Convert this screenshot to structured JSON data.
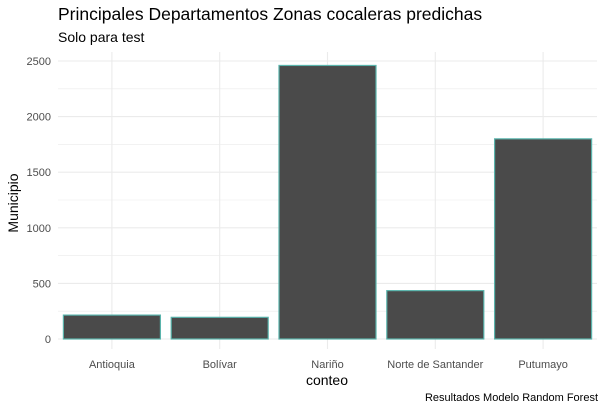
{
  "chart_data": {
    "type": "bar",
    "title": "Principales Departamentos Zonas cocaleras predichas",
    "subtitle": "Solo para test",
    "caption": "Resultados Modelo Random Forest",
    "xlabel": "conteo",
    "ylabel": "Municipio",
    "categories": [
      "Antioquia",
      "Bolívar",
      "Nariño",
      "Norte de Santander",
      "Putumayo"
    ],
    "values": [
      215,
      195,
      2460,
      435,
      1800
    ],
    "ylim": [
      0,
      2550
    ],
    "yticks": [
      0,
      500,
      1000,
      1500,
      2000,
      2500
    ],
    "grid": true,
    "colors": {
      "bar_fill": "#4a4a4a",
      "bar_outline": "#5ab4ac",
      "grid": "#ebebeb"
    }
  }
}
